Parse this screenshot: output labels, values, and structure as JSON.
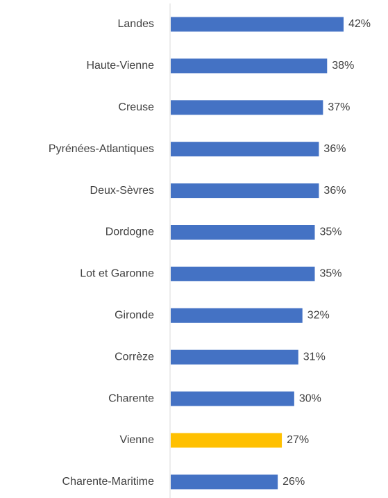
{
  "chart_data": {
    "type": "hbar",
    "categories": [
      "Landes",
      "Haute-Vienne",
      "Creuse",
      "Pyrénées-Atlantiques",
      "Deux-Sèvres",
      "Dordogne",
      "Lot et Garonne",
      "Gironde",
      "Corrèze",
      "Charente",
      "Vienne",
      "Charente-Maritime"
    ],
    "values": [
      42,
      38,
      37,
      36,
      36,
      35,
      35,
      32,
      31,
      30,
      27,
      26
    ],
    "value_labels": [
      "42%",
      "38%",
      "37%",
      "36%",
      "36%",
      "35%",
      "35%",
      "32%",
      "31%",
      "30%",
      "27%",
      "26%"
    ],
    "colors": [
      "#4472c4",
      "#4472c4",
      "#4472c4",
      "#4472c4",
      "#4472c4",
      "#4472c4",
      "#4472c4",
      "#4472c4",
      "#4472c4",
      "#4472c4",
      "#ffc000",
      "#4472c4"
    ]
  }
}
